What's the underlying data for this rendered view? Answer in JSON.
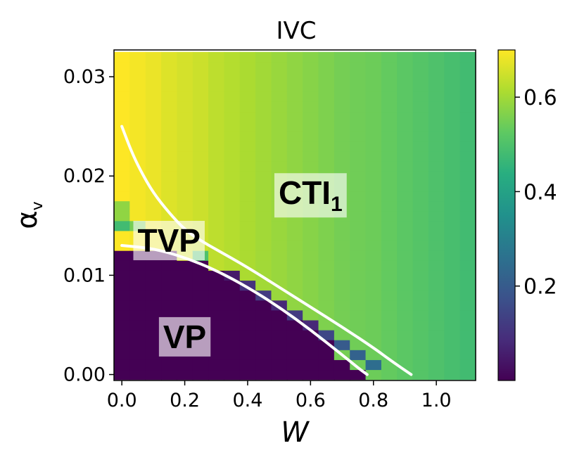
{
  "chart_data": {
    "type": "heatmap",
    "title": "IVC",
    "xlabel": "W",
    "ylabel": "α",
    "ylabel_sub": "v",
    "xlim": [
      -0.025,
      1.125
    ],
    "ylim": [
      -0.0006,
      0.0327
    ],
    "xticks": [
      "0.0",
      "0.2",
      "0.4",
      "0.6",
      "0.8",
      "1.0"
    ],
    "xtick_values": [
      0.0,
      0.2,
      0.4,
      0.6,
      0.8,
      1.0
    ],
    "yticks": [
      "0.00",
      "0.01",
      "0.02",
      "0.03"
    ],
    "ytick_values": [
      0.0,
      0.01,
      0.02,
      0.03
    ],
    "colorbar": {
      "min": 0.0,
      "max": 0.7,
      "ticks": [
        "0.2",
        "0.4",
        "0.6"
      ],
      "tick_values": [
        0.2,
        0.4,
        0.6
      ],
      "colormap": "viridis"
    },
    "grid": {
      "x_centers": [
        0.0,
        0.05,
        0.1,
        0.15,
        0.2,
        0.25,
        0.3,
        0.35,
        0.4,
        0.45,
        0.5,
        0.55,
        0.6,
        0.65,
        0.7,
        0.75,
        0.8,
        0.85,
        0.9,
        0.95,
        1.0,
        1.05,
        1.1
      ],
      "y_count": 33,
      "y_min": -0.0005,
      "y_max": 0.0325,
      "column_values": [
        0.7,
        0.69,
        0.68,
        0.665,
        0.655,
        0.645,
        0.63,
        0.62,
        0.61,
        0.6,
        0.59,
        0.58,
        0.57,
        0.56,
        0.55,
        0.545,
        0.54,
        0.53,
        0.52,
        0.51,
        0.5,
        0.49,
        0.48
      ],
      "vp_value": 0.0,
      "boundary_cells": [
        {
          "x": 0.0,
          "y_from": 0.0145,
          "y_to": 0.0155,
          "value": 0.48
        },
        {
          "x": 0.0,
          "y_from": 0.0155,
          "y_to": 0.0175,
          "value": 0.58
        },
        {
          "x": 0.05,
          "y_from": 0.0145,
          "y_to": 0.0155,
          "value": 0.55
        },
        {
          "x": 0.25,
          "y_from": 0.0115,
          "y_to": 0.0125,
          "value": 0.5
        },
        {
          "x": 0.35,
          "y_from": 0.0095,
          "y_to": 0.0105,
          "value": 0.05
        },
        {
          "x": 0.4,
          "y_from": 0.0085,
          "y_to": 0.0095,
          "value": 0.1
        },
        {
          "x": 0.45,
          "y_from": 0.0075,
          "y_to": 0.0085,
          "value": 0.12
        },
        {
          "x": 0.5,
          "y_from": 0.0065,
          "y_to": 0.0075,
          "value": 0.08
        },
        {
          "x": 0.55,
          "y_from": 0.0055,
          "y_to": 0.0065,
          "value": 0.12
        },
        {
          "x": 0.6,
          "y_from": 0.0045,
          "y_to": 0.0055,
          "value": 0.08
        },
        {
          "x": 0.65,
          "y_from": 0.0035,
          "y_to": 0.0045,
          "value": 0.15
        },
        {
          "x": 0.7,
          "y_from": 0.0025,
          "y_to": 0.0035,
          "value": 0.2
        },
        {
          "x": 0.75,
          "y_from": 0.0015,
          "y_to": 0.0025,
          "value": 0.22
        },
        {
          "x": 0.8,
          "y_from": 0.0005,
          "y_to": 0.0015,
          "value": 0.25
        }
      ]
    },
    "curves": [
      {
        "name": "upper-boundary",
        "color": "#ffffff",
        "x": [
          0.0,
          0.03,
          0.06,
          0.1,
          0.15,
          0.2,
          0.25,
          0.3,
          0.4,
          0.5,
          0.6,
          0.7,
          0.8,
          0.86,
          0.92
        ],
        "y": [
          0.025,
          0.0225,
          0.0205,
          0.0183,
          0.0163,
          0.0146,
          0.0135,
          0.0126,
          0.0108,
          0.0088,
          0.0068,
          0.0048,
          0.0027,
          0.0013,
          0.0
        ]
      },
      {
        "name": "lower-boundary",
        "color": "#ffffff",
        "x": [
          0.0,
          0.1,
          0.2,
          0.3,
          0.4,
          0.5,
          0.6,
          0.7,
          0.75,
          0.78
        ],
        "y": [
          0.013,
          0.0127,
          0.0118,
          0.0105,
          0.0088,
          0.0068,
          0.0045,
          0.002,
          0.0007,
          0.0
        ]
      }
    ],
    "annotations": [
      {
        "name": "CTI",
        "sub": "1",
        "x": 0.6,
        "y": 0.0183
      },
      {
        "name": "TVP",
        "sub": "",
        "x": 0.15,
        "y": 0.0135
      },
      {
        "name": "VP",
        "sub": "",
        "x": 0.2,
        "y": 0.0038
      }
    ]
  }
}
